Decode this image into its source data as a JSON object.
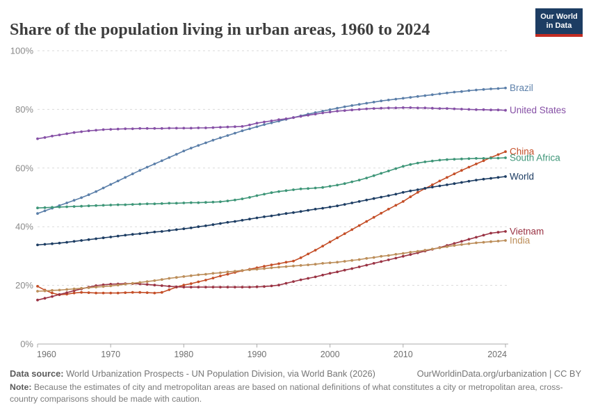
{
  "header": {
    "title": "Share of the population living in urban areas, 1960 to 2024",
    "logo": {
      "line1": "Our World",
      "line2": "in Data"
    }
  },
  "colors": {
    "logo_background": "#1d3d63",
    "logo_bar": "#c32c22",
    "gridline": "#dadada",
    "axis_line": "#ababab",
    "y_tick_label": "#8a8a8a",
    "x_tick_label": "#6f6f6f",
    "title_text": "#3d3d3d",
    "footer_text": "#757575"
  },
  "chart_data": {
    "type": "line",
    "title": "Share of the population living in urban areas, 1960 to 2024",
    "unit": "%",
    "x_start": 1960,
    "x_end": 2024,
    "x_step": 1,
    "xticks": [
      1960,
      1970,
      1980,
      1990,
      2000,
      2010,
      2024
    ],
    "ylim": [
      0,
      100
    ],
    "yticks": [
      0,
      20,
      40,
      60,
      80,
      100
    ],
    "ytick_suffix": "%",
    "grid": "dashed-horizontal",
    "legend_position": "right-end-labels",
    "series": [
      {
        "name": "Brazil",
        "color": "#5b7fa9",
        "values": [
          44.5,
          45.4,
          46.3,
          47.2,
          48.1,
          49.0,
          49.9,
          50.9,
          52.0,
          53.2,
          54.4,
          55.6,
          56.8,
          58.0,
          59.2,
          60.3,
          61.4,
          62.5,
          63.6,
          64.7,
          65.8,
          66.8,
          67.7,
          68.6,
          69.5,
          70.3,
          71.1,
          71.9,
          72.7,
          73.4,
          74.1,
          74.8,
          75.4,
          76.0,
          76.6,
          77.2,
          77.8,
          78.4,
          78.9,
          79.4,
          79.9,
          80.4,
          80.9,
          81.3,
          81.7,
          82.1,
          82.5,
          82.9,
          83.2,
          83.5,
          83.8,
          84.1,
          84.4,
          84.7,
          85.0,
          85.3,
          85.6,
          85.9,
          86.1,
          86.4,
          86.6,
          86.8,
          87.0,
          87.1,
          87.3
        ]
      },
      {
        "name": "United States",
        "color": "#8650a6",
        "values": [
          70.0,
          70.4,
          70.9,
          71.3,
          71.7,
          72.1,
          72.4,
          72.7,
          72.9,
          73.1,
          73.2,
          73.3,
          73.4,
          73.4,
          73.5,
          73.5,
          73.5,
          73.5,
          73.6,
          73.6,
          73.6,
          73.6,
          73.7,
          73.7,
          73.8,
          73.9,
          74.0,
          74.1,
          74.2,
          74.7,
          75.3,
          75.7,
          76.1,
          76.5,
          76.8,
          77.2,
          77.6,
          78.0,
          78.4,
          78.8,
          79.1,
          79.4,
          79.6,
          79.8,
          80.0,
          80.2,
          80.3,
          80.4,
          80.5,
          80.5,
          80.6,
          80.6,
          80.5,
          80.5,
          80.4,
          80.3,
          80.3,
          80.2,
          80.1,
          80.0,
          79.9,
          79.9,
          79.8,
          79.8,
          79.7
        ]
      },
      {
        "name": "China",
        "color": "#c44e27",
        "values": [
          19.7,
          18.4,
          17.4,
          16.8,
          17.0,
          17.4,
          17.6,
          17.5,
          17.4,
          17.4,
          17.4,
          17.4,
          17.5,
          17.6,
          17.6,
          17.5,
          17.4,
          17.6,
          18.5,
          19.4,
          20.1,
          20.6,
          21.2,
          21.8,
          22.5,
          23.2,
          23.8,
          24.4,
          25.0,
          25.5,
          26.0,
          26.5,
          27.0,
          27.4,
          27.9,
          28.3,
          29.4,
          30.7,
          32.0,
          33.4,
          34.8,
          36.2,
          37.6,
          39.0,
          40.4,
          41.8,
          43.2,
          44.6,
          46.0,
          47.3,
          48.6,
          50.2,
          51.7,
          53.0,
          54.3,
          55.6,
          56.8,
          58.0,
          59.2,
          60.3,
          61.4,
          62.5,
          63.6,
          64.6,
          65.6
        ]
      },
      {
        "name": "South Africa",
        "color": "#3e9678",
        "values": [
          46.4,
          46.5,
          46.6,
          46.7,
          46.8,
          46.9,
          47.0,
          47.1,
          47.2,
          47.3,
          47.4,
          47.5,
          47.5,
          47.6,
          47.7,
          47.8,
          47.8,
          47.9,
          48.0,
          48.0,
          48.1,
          48.2,
          48.2,
          48.3,
          48.4,
          48.5,
          48.8,
          49.1,
          49.5,
          50.0,
          50.6,
          51.1,
          51.6,
          52.0,
          52.3,
          52.6,
          52.9,
          53.0,
          53.2,
          53.4,
          53.8,
          54.2,
          54.7,
          55.3,
          55.9,
          56.6,
          57.4,
          58.2,
          59.0,
          59.8,
          60.6,
          61.2,
          61.7,
          62.1,
          62.4,
          62.7,
          62.9,
          63.0,
          63.1,
          63.2,
          63.3,
          63.3,
          63.4,
          63.4,
          63.5
        ]
      },
      {
        "name": "World",
        "color": "#1d3d63",
        "values": [
          33.8,
          34.0,
          34.2,
          34.4,
          34.7,
          35.0,
          35.3,
          35.6,
          35.9,
          36.2,
          36.5,
          36.8,
          37.1,
          37.4,
          37.6,
          37.9,
          38.2,
          38.4,
          38.7,
          39.0,
          39.3,
          39.6,
          40.0,
          40.3,
          40.7,
          41.1,
          41.5,
          41.8,
          42.2,
          42.6,
          43.0,
          43.4,
          43.7,
          44.1,
          44.5,
          44.8,
          45.2,
          45.6,
          46.0,
          46.3,
          46.7,
          47.1,
          47.6,
          48.1,
          48.6,
          49.1,
          49.6,
          50.1,
          50.6,
          51.1,
          51.7,
          52.2,
          52.6,
          53.1,
          53.5,
          53.9,
          54.3,
          54.7,
          55.1,
          55.5,
          55.9,
          56.2,
          56.5,
          56.8,
          57.1
        ]
      },
      {
        "name": "Vietnam",
        "color": "#9a3344",
        "values": [
          15.0,
          15.6,
          16.2,
          16.9,
          17.5,
          18.2,
          18.8,
          19.4,
          19.9,
          20.2,
          20.4,
          20.5,
          20.6,
          20.6,
          20.5,
          20.3,
          20.1,
          19.9,
          19.7,
          19.5,
          19.4,
          19.4,
          19.4,
          19.4,
          19.4,
          19.4,
          19.4,
          19.4,
          19.4,
          19.4,
          19.5,
          19.6,
          19.8,
          20.1,
          20.7,
          21.3,
          21.9,
          22.4,
          22.9,
          23.5,
          24.1,
          24.6,
          25.2,
          25.7,
          26.3,
          26.9,
          27.5,
          28.1,
          28.7,
          29.3,
          29.9,
          30.5,
          31.1,
          31.7,
          32.3,
          32.9,
          33.6,
          34.3,
          35.0,
          35.7,
          36.4,
          37.1,
          37.8,
          38.1,
          38.4
        ]
      },
      {
        "name": "India",
        "color": "#bc8e5a",
        "values": [
          18.0,
          18.1,
          18.3,
          18.4,
          18.6,
          18.8,
          19.0,
          19.2,
          19.4,
          19.6,
          19.8,
          20.1,
          20.4,
          20.7,
          21.0,
          21.3,
          21.6,
          22.0,
          22.4,
          22.7,
          23.0,
          23.3,
          23.6,
          23.8,
          24.1,
          24.3,
          24.6,
          24.8,
          25.1,
          25.3,
          25.5,
          25.7,
          26.0,
          26.2,
          26.4,
          26.6,
          26.8,
          27.0,
          27.2,
          27.5,
          27.7,
          27.9,
          28.2,
          28.5,
          28.8,
          29.2,
          29.5,
          29.9,
          30.2,
          30.6,
          30.9,
          31.3,
          31.6,
          32.0,
          32.4,
          32.8,
          33.2,
          33.6,
          33.9,
          34.2,
          34.5,
          34.7,
          34.9,
          35.1,
          35.3
        ]
      }
    ]
  },
  "footer": {
    "source_label": "Data source:",
    "source_text": " World Urbanization Prospects - UN Population Division, via World Bank (2026)",
    "attribution": "OurWorldinData.org/urbanization | CC BY",
    "note_label": "Note:",
    "note_text": " Because the estimates of city and metropolitan areas are based on national definitions of what constitutes a city or metropolitan area, cross-country comparisons should be made with caution."
  }
}
